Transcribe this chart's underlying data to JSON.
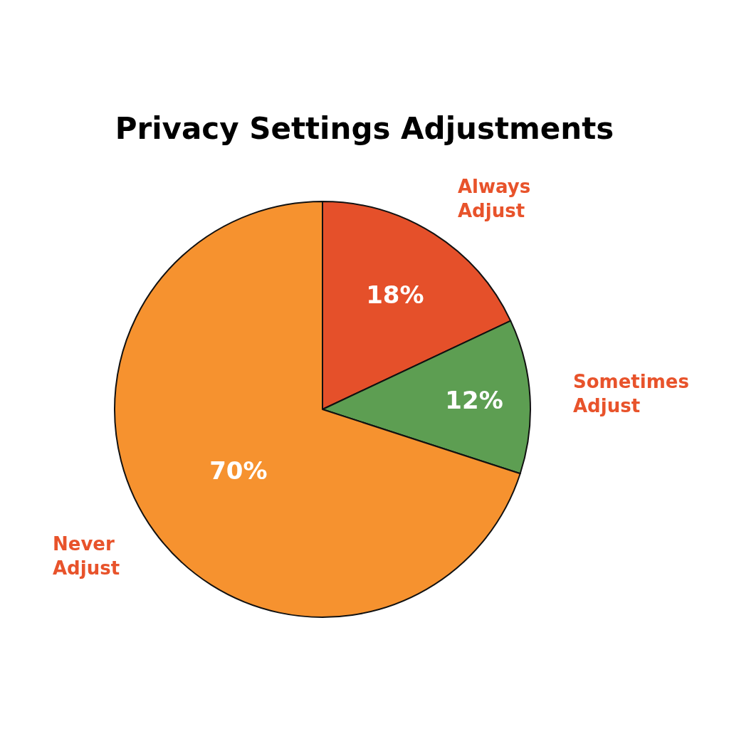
{
  "chart_data": {
    "type": "pie",
    "title": "Privacy Settings Adjustments",
    "categories": [
      "Always Adjust",
      "Sometimes Adjust",
      "Never Adjust"
    ],
    "values": [
      18,
      12,
      70
    ],
    "colors": [
      "#e5502a",
      "#5d9e52",
      "#f6922f"
    ],
    "value_labels": [
      "18%",
      "12%",
      "70%"
    ]
  }
}
